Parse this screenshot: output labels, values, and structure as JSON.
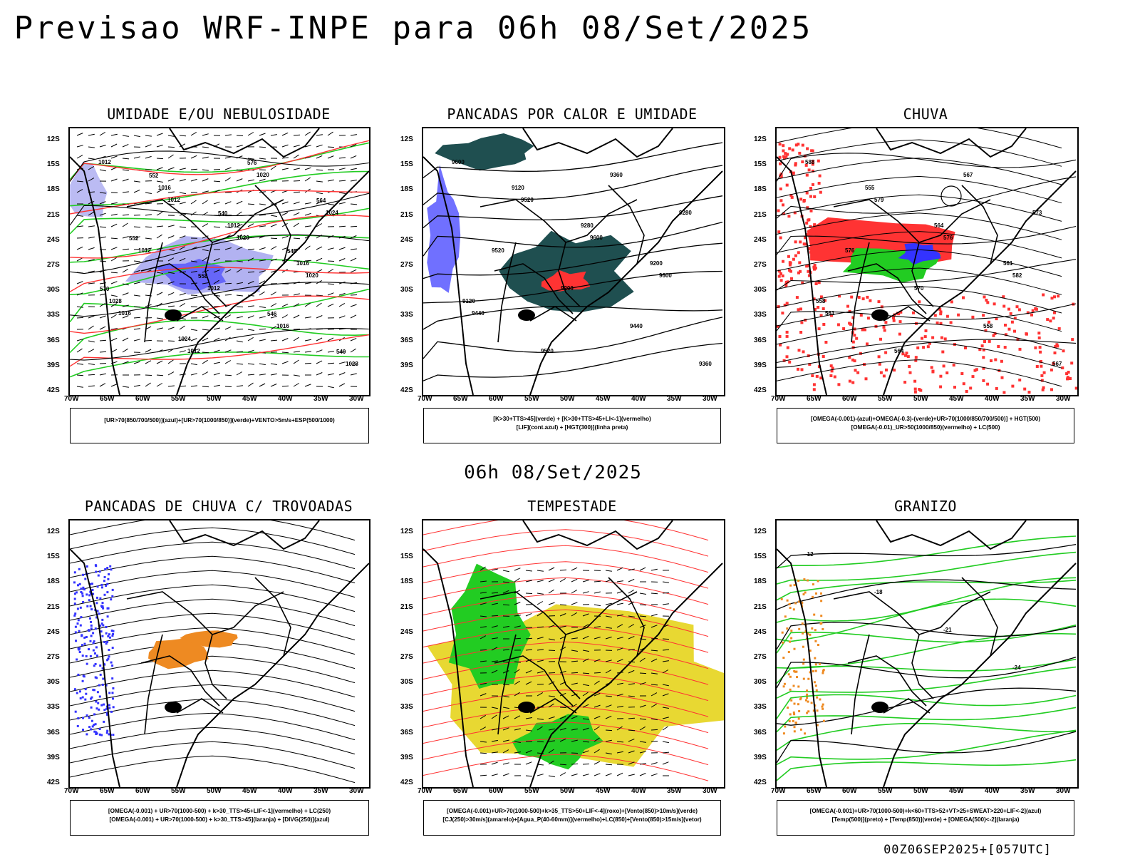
{
  "page": {
    "title": "Previsao WRF-INPE  para 06h 08/Set/2025",
    "middle_title": "06h 08/Set/2025",
    "footer": "00Z06SEP2025+[057UTC]"
  },
  "axes": {
    "lat_labels": [
      "12S",
      "15S",
      "18S",
      "21S",
      "24S",
      "27S",
      "30S",
      "33S",
      "36S",
      "39S",
      "42S"
    ],
    "lon_labels": [
      "70W",
      "65W",
      "60W",
      "55W",
      "50W",
      "45W",
      "40W",
      "35W",
      "30W"
    ]
  },
  "panels": [
    {
      "id": "umidade",
      "title": "UMIDADE E/OU NEBULOSIDADE",
      "legend": [
        "[UR>70(850/700/500)](azul)+[UR>70(1000/850)](verde)+VENTO>5m/s+ESP(500/1000)"
      ],
      "contour_labels": [
        "1012",
        "1012",
        "1020",
        "1020",
        "1016",
        "1012",
        "1020",
        "1024",
        "1012",
        "1012",
        "1016",
        "1028",
        "1016",
        "1012",
        "1016",
        "1028",
        "1024",
        "576",
        "564",
        "552",
        "558",
        "546",
        "540",
        "552",
        "540",
        "546",
        "570"
      ]
    },
    {
      "id": "pancadas-calor",
      "title": "PANCADAS POR CALOR E UMIDADE",
      "legend": [
        "[K>30+TTS>45](verde) + [K>30+TTS>45+LI<-1](vermelho)",
        "[LIF](cont.azul) + [HGT(300)](linha preta)"
      ],
      "contour_labels": [
        "9600",
        "9520",
        "9600",
        "9600",
        "9440",
        "9520",
        "9360",
        "9280",
        "9520",
        "9200",
        "9440",
        "9360",
        "9120",
        "9280",
        "9200",
        "9120"
      ]
    },
    {
      "id": "chuva",
      "title": "CHUVA",
      "legend": [
        "[OMEGA(-0.001)-(azul)+OMEGA(-0.3)-(verde)+UR>70(1000/850/700/500)] + HGT(500)",
        "[OMEGA(-0.01)_UR>50(1000/850)(vermelho) + LC(500)"
      ],
      "contour_labels": [
        "588",
        "579",
        "576",
        "582",
        "561",
        "564",
        "567",
        "573",
        "576",
        "570",
        "558",
        "567",
        "555",
        "564",
        "561",
        "558"
      ]
    },
    {
      "id": "trovoadas",
      "title": "PANCADAS DE CHUVA C/ TROVOADAS",
      "legend": [
        "[OMEGA(-0.001) + UR>70(1000-500) + k>30_TTS>45+LIF<-1](vermelho) + LC(250)",
        "[OMEGA(-0.001) + UR>70(1000-500) + k>30_TTS>45](laranja) + [DIVG(250)](azul)"
      ],
      "contour_labels": []
    },
    {
      "id": "tempestade",
      "title": "TEMPESTADE",
      "legend": [
        "[OMEGA(-0.001)+UR>70(1000-500)+k>35_TTS>50+LIF<-4](roxo)+[Vento(850)>10m/s](verde)",
        "[CJ(250)>30m/s](amarelo)+[Agua_P(40-60mm)](vermelho)+LC(850)+[Vento(850)>15m/s](vetor)"
      ],
      "contour_labels": []
    },
    {
      "id": "granizo",
      "title": "GRANIZO",
      "legend": [
        "[OMEGA(-0.001)+UR>70(1000-500)+k<60+TTS>52+VT>25+SWEAT>220+LIF<-2](azul)",
        "[Temp(500)](preto) + [Temp(850)](verde) + [OMEGA(500)<-2](laranja)"
      ],
      "contour_labels": [
        "-12",
        "-18",
        "-21",
        "-24"
      ]
    }
  ],
  "chart_data": [
    {
      "type": "heatmap",
      "title": "UMIDADE E/OU NEBULOSIDADE",
      "lat_range": [
        -42,
        -10
      ],
      "lon_range": [
        -70,
        -28
      ],
      "units": "hPa / dam",
      "isobars_hPa": [
        1012,
        1016,
        1020,
        1024,
        1028
      ],
      "thickness_dam": [
        540,
        546,
        552,
        558,
        564,
        570,
        576
      ]
    },
    {
      "type": "heatmap",
      "title": "PANCADAS POR CALOR E UMIDADE",
      "lat_range": [
        -42,
        -10
      ],
      "lon_range": [
        -70,
        -28
      ],
      "units": "m",
      "hgt300": [
        9120,
        9200,
        9280,
        9360,
        9440,
        9520,
        9600
      ]
    },
    {
      "type": "heatmap",
      "title": "CHUVA",
      "lat_range": [
        -42,
        -10
      ],
      "lon_range": [
        -70,
        -28
      ],
      "units": "dam",
      "hgt500": [
        555,
        558,
        561,
        564,
        567,
        570,
        573,
        576,
        579,
        582,
        588
      ]
    },
    {
      "type": "heatmap",
      "title": "PANCADAS DE CHUVA C/ TROVOADAS",
      "lat_range": [
        -42,
        -10
      ],
      "lon_range": [
        -70,
        -28
      ]
    },
    {
      "type": "heatmap",
      "title": "TEMPESTADE",
      "lat_range": [
        -42,
        -10
      ],
      "lon_range": [
        -70,
        -28
      ]
    },
    {
      "type": "heatmap",
      "title": "GRANIZO",
      "lat_range": [
        -42,
        -10
      ],
      "lon_range": [
        -70,
        -28
      ],
      "units": "C",
      "temp500": [
        -12,
        -18,
        -21,
        -24
      ]
    }
  ],
  "colors": {
    "blue": "#3333ff",
    "lightblue": "#aaaaf0",
    "green": "#22cc22",
    "red": "#ff3333",
    "darkteal": "#1f4f50",
    "orange": "#ee8a22",
    "yellow": "#e8d832",
    "black": "#000000"
  }
}
